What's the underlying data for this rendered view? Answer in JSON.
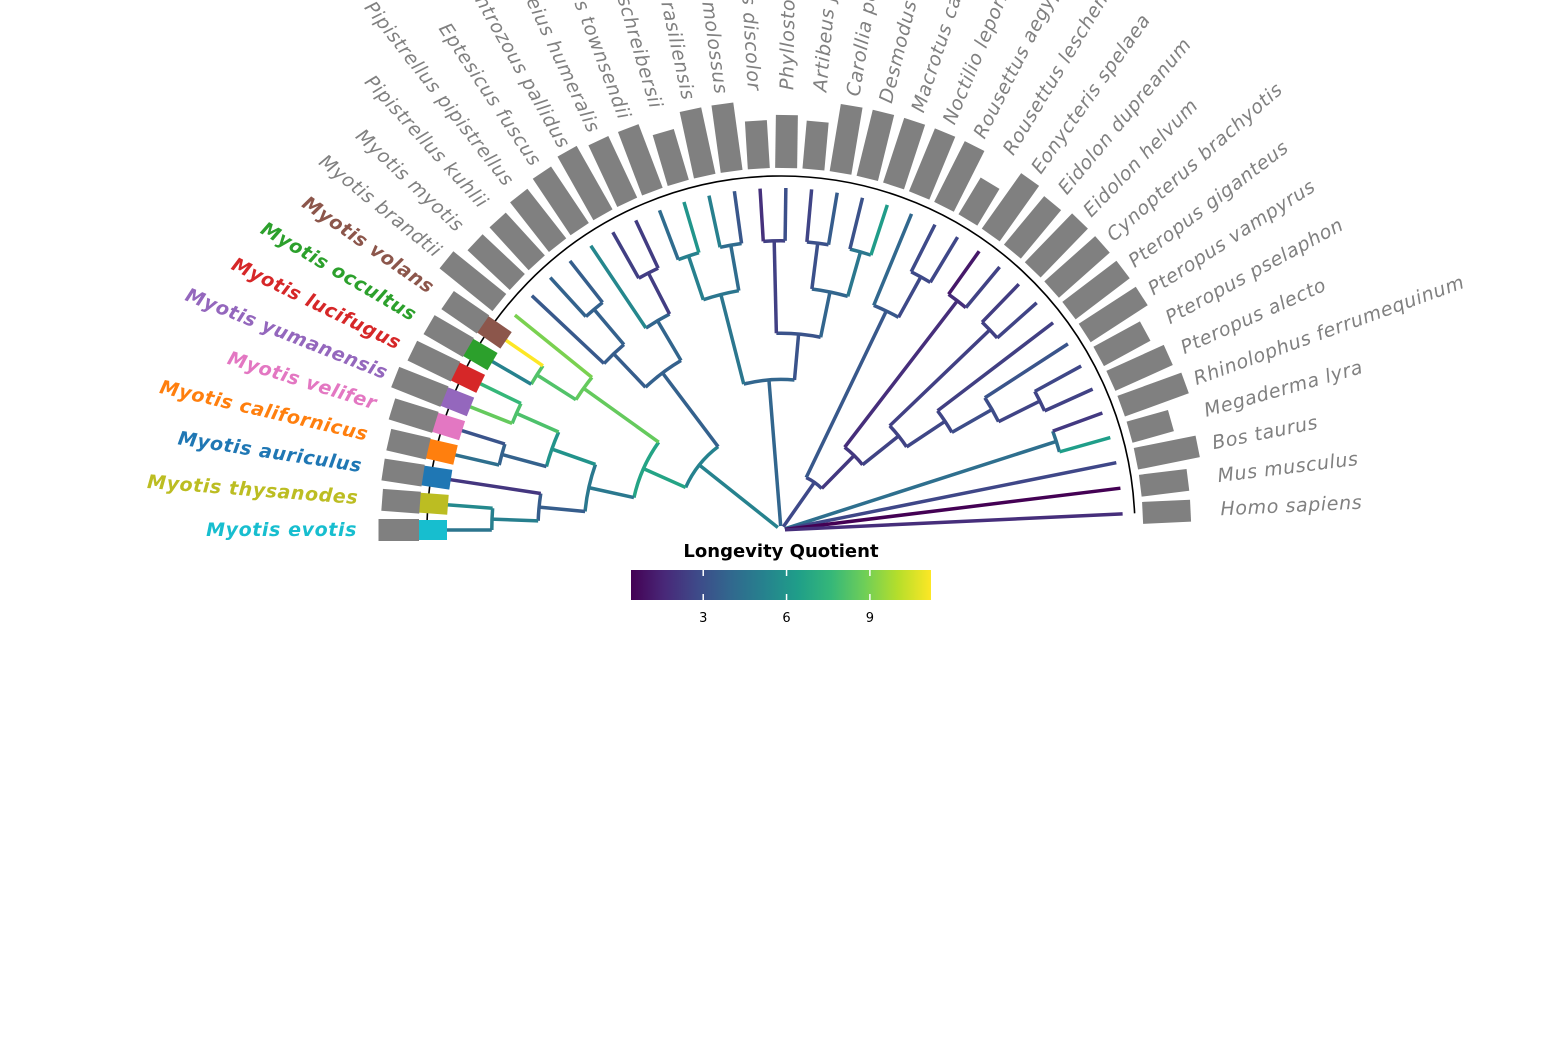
{
  "tips": [
    {
      "name": "Myotis evotis",
      "highlight": "#17becf",
      "lq": 4.6,
      "bar": 0.45
    },
    {
      "name": "Myotis thysanodes",
      "highlight": "#bcbd22",
      "lq": 5.5,
      "bar": 0.4
    },
    {
      "name": "Myotis auriculus",
      "highlight": "#1f77b4",
      "lq": 2.1,
      "bar": 0.45
    },
    {
      "name": "Myotis californicus",
      "highlight": "#ff7f0e",
      "lq": 4.3,
      "bar": 0.45
    },
    {
      "name": "Myotis velifer",
      "highlight": "#e377c2",
      "lq": 3.2,
      "bar": 0.55
    },
    {
      "name": "Myotis yumanensis",
      "highlight": "#9467bd",
      "lq": 8.6,
      "bar": 0.7
    },
    {
      "name": "Myotis lucifugus",
      "highlight": "#d62728",
      "lq": 7.6,
      "bar": 0.6
    },
    {
      "name": "Myotis occultus",
      "highlight": "#2ca02c",
      "lq": 5.2,
      "bar": 0.55
    },
    {
      "name": "Myotis volans",
      "highlight": "#8c564b",
      "lq": 11.2,
      "bar": 0.5
    },
    {
      "name": "Myotis brandtii",
      "highlight": "",
      "lq": 9.0,
      "bar": 1.0
    },
    {
      "name": "Myotis myotis",
      "highlight": "",
      "lq": 3.4,
      "bar": 0.8
    },
    {
      "name": "Pipistrellus kuhlii",
      "highlight": "",
      "lq": 3.8,
      "bar": 0.8
    },
    {
      "name": "Pipistrellus pipistrellus",
      "highlight": "",
      "lq": 3.6,
      "bar": 0.9
    },
    {
      "name": "Eptesicus fuscus",
      "highlight": "",
      "lq": 5.4,
      "bar": 1.0
    },
    {
      "name": "Antrozous pallidus",
      "highlight": "",
      "lq": 2.4,
      "bar": 1.1
    },
    {
      "name": "Lasiurus cinereus / Nycticeius humeralis",
      "display": "Nycticeius humeralis",
      "highlight": "",
      "lq": 2.3,
      "bar": 1.0
    },
    {
      "name": "Corynorhinus townsendii",
      "highlight": "",
      "lq": 4.2,
      "bar": 1.0
    },
    {
      "name": "Miniopterus schreibersii",
      "highlight": "",
      "lq": 6.0,
      "bar": 0.7
    },
    {
      "name": "Tadarida brasiliensis",
      "highlight": "",
      "lq": 5.1,
      "bar": 1.0
    },
    {
      "name": "Molossus molossus",
      "highlight": "",
      "lq": 3.3,
      "bar": 1.0
    },
    {
      "name": "Phyllostomus discolor",
      "highlight": "",
      "lq": 1.9,
      "bar": 0.6
    },
    {
      "name": "Phyllostomus hastatus",
      "highlight": "",
      "lq": 3.0,
      "bar": 0.7
    },
    {
      "name": "Artibeus jamaicensis",
      "highlight": "",
      "lq": 2.6,
      "bar": 0.6
    },
    {
      "name": "Carollia perspicillata",
      "highlight": "",
      "lq": 3.5,
      "bar": 1.0
    },
    {
      "name": "Desmodus rotundus",
      "highlight": "",
      "lq": 3.1,
      "bar": 1.0
    },
    {
      "name": "Macrotus californicus",
      "highlight": "",
      "lq": 6.3,
      "bar": 1.0
    },
    {
      "name": "Noctilio leporinus",
      "highlight": "",
      "lq": 4.0,
      "bar": 1.0
    },
    {
      "name": "Rousettus aegyptiacus",
      "highlight": "",
      "lq": 2.8,
      "bar": 1.0
    },
    {
      "name": "Rousettus leschenaultii",
      "highlight": "",
      "lq": 2.7,
      "bar": 0.5
    },
    {
      "name": "Eonycteris spelaea",
      "highlight": "",
      "lq": 1.1,
      "bar": 1.0
    },
    {
      "name": "Eidolon dupreanum",
      "highlight": "",
      "lq": 2.5,
      "bar": 0.9
    },
    {
      "name": "Eidolon helvum",
      "highlight": "",
      "lq": 2.3,
      "bar": 1.0
    },
    {
      "name": "Cynopterus brachyotis",
      "highlight": "",
      "lq": 2.6,
      "bar": 1.0
    },
    {
      "name": "Pteropus giganteus",
      "highlight": "",
      "lq": 2.4,
      "bar": 1.0
    },
    {
      "name": "Pteropus vampyrus",
      "highlight": "",
      "lq": 3.2,
      "bar": 1.0
    },
    {
      "name": "Pteropus pselaphon",
      "highlight": "",
      "lq": 2.7,
      "bar": 0.7
    },
    {
      "name": "Pteropus alecto",
      "highlight": "",
      "lq": 2.5,
      "bar": 0.9
    },
    {
      "name": "Rhinolophus ferrumequinum",
      "highlight": "",
      "lq": 2.2,
      "bar": 1.0
    },
    {
      "name": "Megaderma lyra",
      "highlight": "",
      "lq": 6.4,
      "bar": 0.5
    },
    {
      "name": "Bos taurus",
      "highlight": "",
      "lq": 2.7,
      "bar": 0.9
    },
    {
      "name": "Mus musculus",
      "highlight": "",
      "lq": 0.4,
      "bar": 0.6
    },
    {
      "name": "Homo sapiens",
      "highlight": "",
      "lq": 1.8,
      "bar": 0.6
    }
  ],
  "visible_labels": [
    "Myotis evotis",
    "Myotis thysanodes",
    "Myotis auriculus",
    "Myotis californicus",
    "Myotis velifer",
    "Myotis yumanensis",
    "Myotis lucifugus",
    "Myotis occultus",
    "Myotis volans",
    "Myotis brandtii",
    "Myotis myotis",
    "Pipistrellus kuhlii",
    "Pipistrellus pipistrellus",
    "Eptesicus fuscus",
    "Antrozous pallidus",
    "Nycticeius humeralis",
    "Corynorhinus townsendii",
    "Miniopterus schreibersii",
    "Tadarida brasiliensis",
    "Molossus molossus",
    "Phyllostomus discolor",
    "Phyllostomus hastatus",
    "Artibeus jamaicensis",
    "Carollia perspicillata",
    "Desmodus rotundus",
    "Macrotus californicus",
    "Noctilio leporinus",
    "Rousettus aegyptiacus",
    "Rousettus leschenaultii",
    "Eonycteris spelaea",
    "Eidolon dupreanum",
    "Eidolon helvum",
    "Cynopterus brachyotis",
    "Pteropus giganteus",
    "Pteropus vampyrus",
    "Pteropus pselaphon",
    "Pteropus alecto",
    "Rhinolophus ferrumequinum",
    "Megaderma lyra",
    "Bos taurus",
    "Mus musculus",
    "Homo sapiens"
  ],
  "legend": {
    "title": "Longevity Quotient",
    "ticks": [
      3,
      6,
      9
    ],
    "range": [
      0.4,
      11.2
    ],
    "palette": [
      "#440154",
      "#482878",
      "#3e4a89",
      "#31688e",
      "#26828e",
      "#1f9e89",
      "#35b779",
      "#6ece58",
      "#b5de2b",
      "#fde725"
    ]
  },
  "colors": {
    "label_gray": "#808080",
    "bar_gray": "#808080",
    "circle": "#000000"
  }
}
